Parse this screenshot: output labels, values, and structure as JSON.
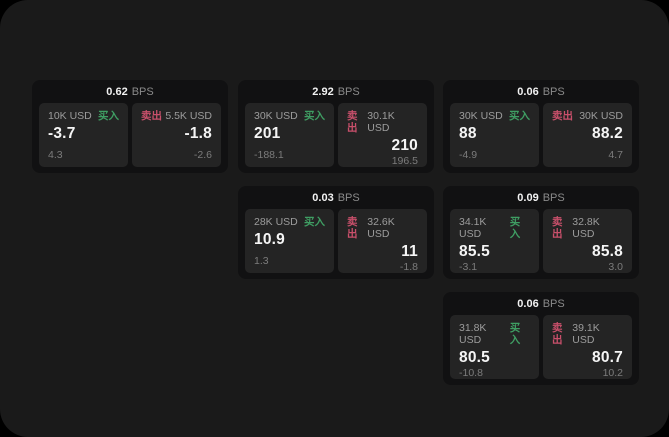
{
  "page": {
    "colors": {
      "bg_outer": "#000000",
      "bg_surface": "#1a1a1a",
      "bg_card": "#111112",
      "bg_subcard": "#242424",
      "accent_green": "#3f9e63",
      "accent_red": "#c9506b"
    }
  },
  "labels": {
    "bps_suffix": "BPS",
    "buy": "买入",
    "sell": "卖出"
  },
  "cards": [
    {
      "bps": "0.62",
      "buy": {
        "amount": "10K USD",
        "price": "-3.7",
        "delta": "4.3"
      },
      "sell": {
        "amount": "5.5K USD",
        "price": "-1.8",
        "delta": "-2.6"
      }
    },
    {
      "bps": "2.92",
      "buy": {
        "amount": "30K USD",
        "price": "201",
        "delta": "-188.1"
      },
      "sell": {
        "amount": "30.1K USD",
        "price": "210",
        "delta": "196.5"
      }
    },
    {
      "bps": "0.06",
      "buy": {
        "amount": "30K USD",
        "price": "88",
        "delta": "-4.9"
      },
      "sell": {
        "amount": "30K USD",
        "price": "88.2",
        "delta": "4.7"
      }
    },
    {
      "bps": "0.03",
      "buy": {
        "amount": "28K USD",
        "price": "10.9",
        "delta": "1.3"
      },
      "sell": {
        "amount": "32.6K USD",
        "price": "11",
        "delta": "-1.8"
      }
    },
    {
      "bps": "0.09",
      "buy": {
        "amount": "34.1K USD",
        "price": "85.5",
        "delta": "-3.1"
      },
      "sell": {
        "amount": "32.8K USD",
        "price": "85.8",
        "delta": "3.0"
      }
    },
    {
      "bps": "0.06",
      "buy": {
        "amount": "31.8K USD",
        "price": "80.5",
        "delta": "-10.8"
      },
      "sell": {
        "amount": "39.1K USD",
        "price": "80.7",
        "delta": "10.2"
      }
    }
  ]
}
